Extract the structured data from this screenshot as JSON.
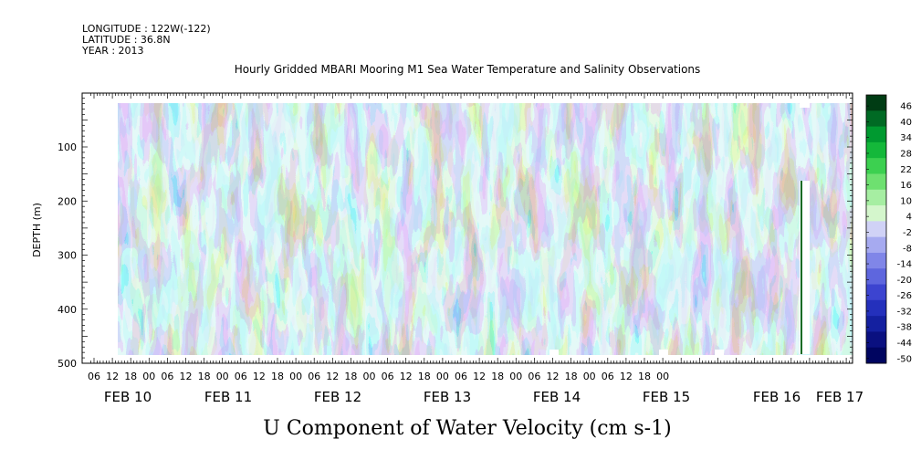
{
  "header": {
    "longitude": "LONGITUDE : 122W(-122)",
    "latitude": "LATITUDE : 36.8N",
    "year": "YEAR : 2013"
  },
  "chart_data": {
    "type": "heatmap",
    "title": "Hourly Gridded MBARI Mooring M1 Sea Water Temperature and Salinity Observations",
    "xlabel": "U Component of Water Velocity (cm s-1)",
    "ylabel": "DEPTH (m)",
    "ylim": [
      500,
      0
    ],
    "y_ticks": [
      100,
      200,
      300,
      400,
      500
    ],
    "x_hour_ticks": [
      "06",
      "12",
      "18",
      "00",
      "06",
      "12",
      "18",
      "00",
      "06",
      "12",
      "18",
      "00",
      "06",
      "12",
      "18",
      "00",
      "06",
      "12",
      "18",
      "00",
      "06",
      "12",
      "18",
      "00",
      "06",
      "12",
      "18",
      "00",
      "06",
      "12",
      "18",
      "00"
    ],
    "x_date_labels": [
      "FEB 10",
      "FEB 11",
      "FEB 12",
      "FEB 13",
      "FEB 14",
      "FEB 15",
      "FEB 16",
      "FEB 17"
    ],
    "colorbar": {
      "levels": [
        "46",
        "40",
        "34",
        "28",
        "22",
        "16",
        "10",
        "4",
        "-2",
        "-8",
        "-14",
        "-20",
        "-26",
        "-32",
        "-38",
        "-44",
        "-50"
      ],
      "colors": [
        "#003c14",
        "#006a24",
        "#009a30",
        "#14b83a",
        "#3cd050",
        "#6ee070",
        "#a6eea2",
        "#d4f6cc",
        "#d0d2f6",
        "#a6aaf0",
        "#8086e8",
        "#5e66de",
        "#3c44d0",
        "#2430bc",
        "#1420a0",
        "#0a1080",
        "#000560"
      ]
    }
  }
}
